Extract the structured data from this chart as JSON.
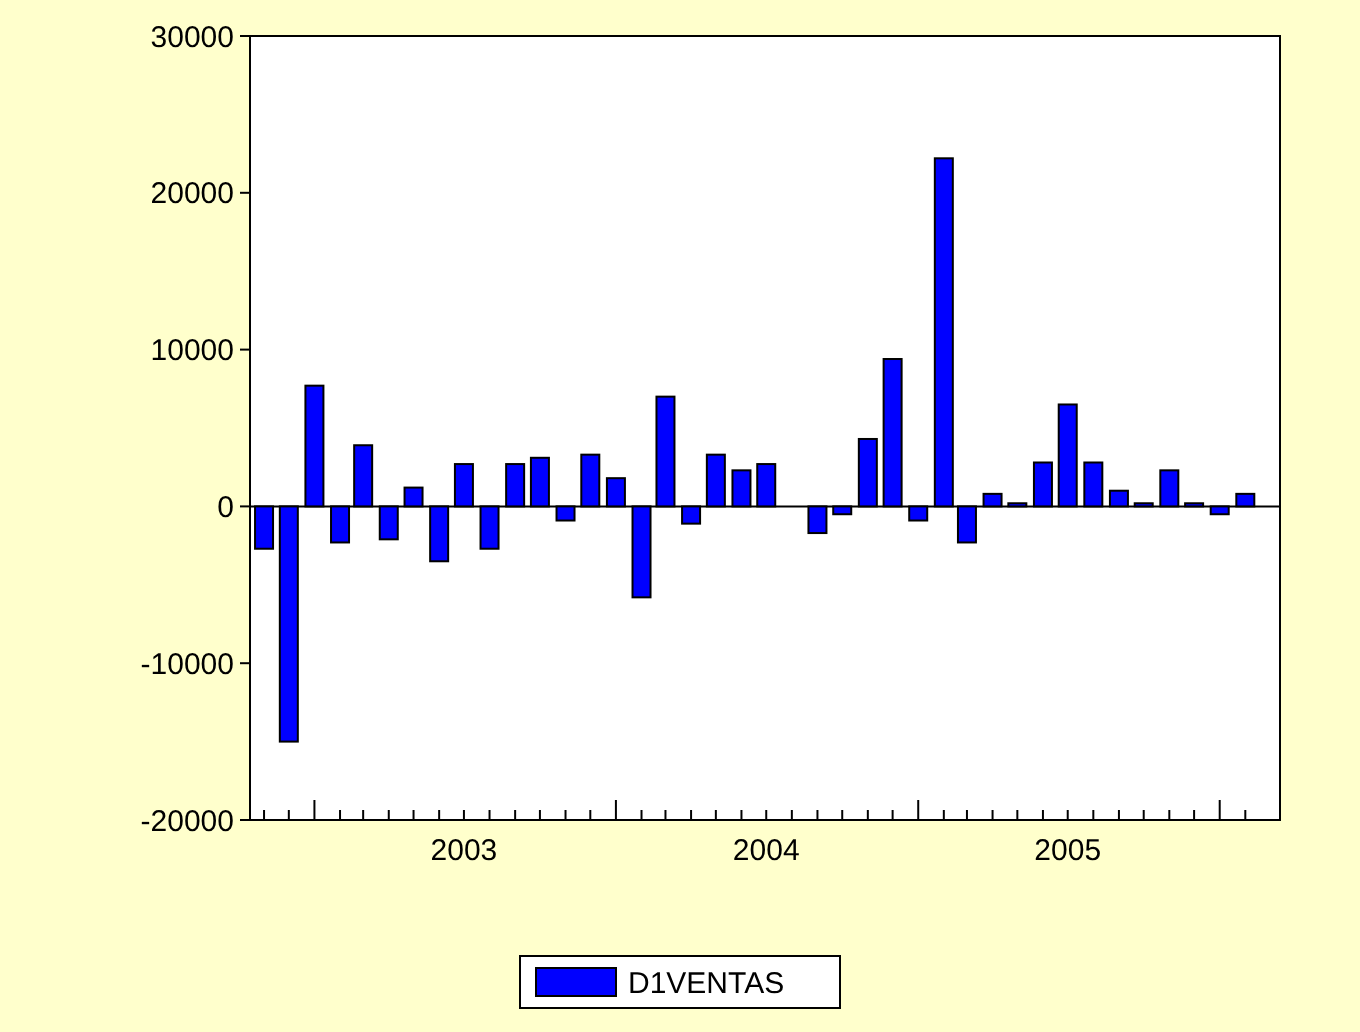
{
  "chart_data": {
    "type": "bar",
    "x": [
      "2002-11",
      "2002-12",
      "2003-01",
      "2003-02",
      "2003-03",
      "2003-04",
      "2003-05",
      "2003-06",
      "2003-07",
      "2003-08",
      "2003-09",
      "2003-10",
      "2003-11",
      "2003-12",
      "2004-01",
      "2004-02",
      "2004-03",
      "2004-04",
      "2004-05",
      "2004-06",
      "2004-07",
      "2004-08",
      "2004-09",
      "2004-10",
      "2004-11",
      "2004-12",
      "2005-01",
      "2005-02",
      "2005-03",
      "2005-04",
      "2005-05",
      "2005-06",
      "2005-07",
      "2005-08",
      "2005-09",
      "2005-10",
      "2005-11",
      "2005-12",
      "2006-01",
      "2006-02"
    ],
    "series": [
      {
        "name": "D1VENTAS",
        "color": "#0000ff",
        "values": [
          -2700,
          -15000,
          7700,
          -2300,
          3900,
          -2100,
          1200,
          -3500,
          2700,
          -2700,
          2700,
          3100,
          -900,
          3300,
          1800,
          -5800,
          7000,
          -1100,
          3300,
          2300,
          2700,
          null,
          -1700,
          -500,
          4300,
          9400,
          -900,
          22200,
          -2300,
          800,
          200,
          2800,
          6500,
          2800,
          1000,
          200,
          2300,
          200,
          -500,
          800
        ]
      }
    ],
    "xlim": [
      "2002-10-15",
      "2006-03-15"
    ],
    "xticks": [
      {
        "value": "2002-11",
        "label": null
      },
      {
        "value": "2002-12",
        "label": null
      },
      {
        "value": "2003-01",
        "label": null
      },
      {
        "value": "2003-02",
        "label": null
      },
      {
        "value": "2003-03",
        "label": null
      },
      {
        "value": "2003-04",
        "label": null
      },
      {
        "value": "2003-05",
        "label": null
      },
      {
        "value": "2003-06",
        "label": null
      },
      {
        "value": "2003-07",
        "label": "2003"
      },
      {
        "value": "2003-08",
        "label": null
      },
      {
        "value": "2003-09",
        "label": null
      },
      {
        "value": "2003-10",
        "label": null
      },
      {
        "value": "2003-11",
        "label": null
      },
      {
        "value": "2003-12",
        "label": null
      },
      {
        "value": "2004-01",
        "label": null
      },
      {
        "value": "2004-02",
        "label": null
      },
      {
        "value": "2004-03",
        "label": null
      },
      {
        "value": "2004-04",
        "label": null
      },
      {
        "value": "2004-05",
        "label": null
      },
      {
        "value": "2004-06",
        "label": null
      },
      {
        "value": "2004-07",
        "label": "2004"
      },
      {
        "value": "2004-08",
        "label": null
      },
      {
        "value": "2004-09",
        "label": null
      },
      {
        "value": "2004-10",
        "label": null
      },
      {
        "value": "2004-11",
        "label": null
      },
      {
        "value": "2004-12",
        "label": null
      },
      {
        "value": "2005-01",
        "label": null
      },
      {
        "value": "2005-02",
        "label": null
      },
      {
        "value": "2005-03",
        "label": null
      },
      {
        "value": "2005-04",
        "label": null
      },
      {
        "value": "2005-05",
        "label": null
      },
      {
        "value": "2005-06",
        "label": null
      },
      {
        "value": "2005-07",
        "label": "2005"
      },
      {
        "value": "2005-08",
        "label": null
      },
      {
        "value": "2005-09",
        "label": null
      },
      {
        "value": "2005-10",
        "label": null
      },
      {
        "value": "2005-11",
        "label": null
      },
      {
        "value": "2005-12",
        "label": null
      },
      {
        "value": "2006-01",
        "label": null
      },
      {
        "value": "2006-02",
        "label": null
      }
    ],
    "ylim": [
      -20000,
      30000
    ],
    "yticks": [
      -20000,
      -10000,
      0,
      10000,
      20000,
      30000
    ],
    "ref_lines": [
      {
        "axis": "y",
        "value": 0,
        "color": "#000000"
      }
    ],
    "legend": "bottom"
  }
}
